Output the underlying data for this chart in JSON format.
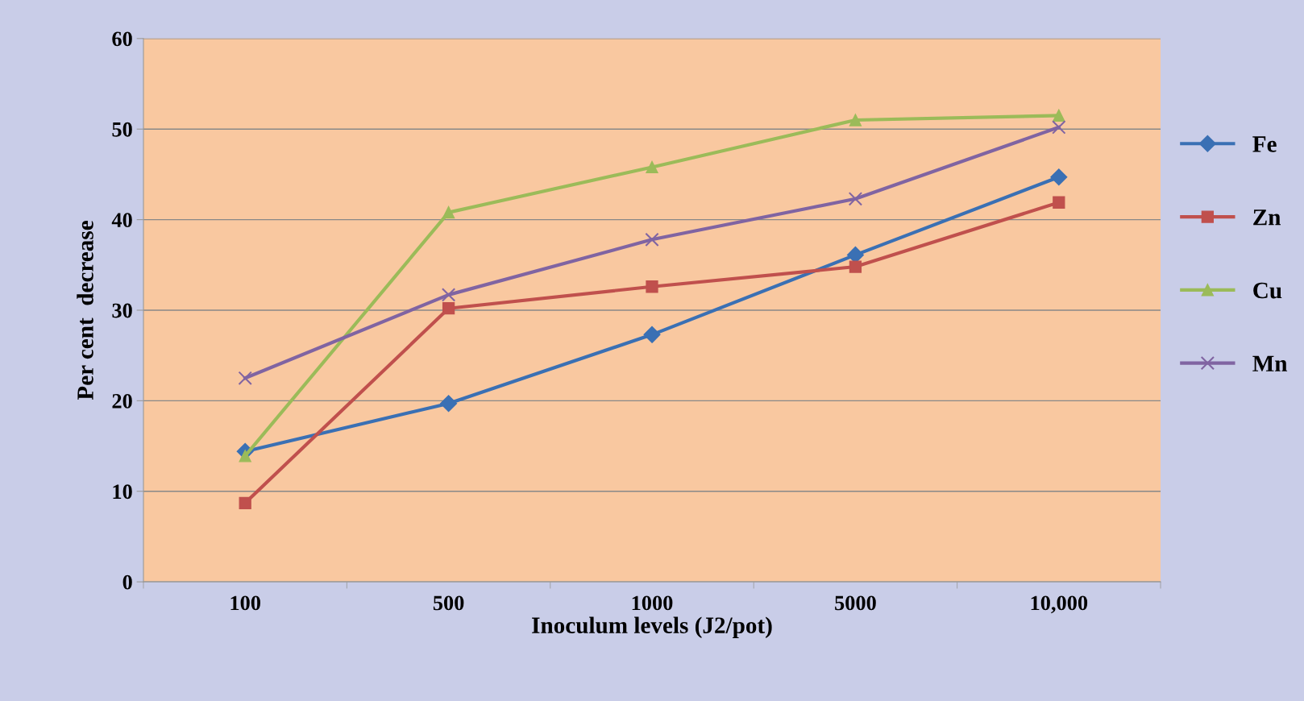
{
  "chart_data": {
    "type": "line",
    "xlabel": "Inoculum levels (J2/pot)",
    "ylabel": "Per cent  decrease",
    "categories": [
      "100",
      "500",
      "1000",
      "5000",
      "10,000"
    ],
    "ylim": [
      0,
      60
    ],
    "yticks": [
      0,
      10,
      20,
      30,
      40,
      50,
      60
    ],
    "grid": "y",
    "legend": "right",
    "series": [
      {
        "name": "Fe",
        "color": "#3a70b4",
        "marker": "diamond",
        "values": [
          14.4,
          19.7,
          27.3,
          36.1,
          44.7
        ]
      },
      {
        "name": "Zn",
        "color": "#c0504d",
        "marker": "square",
        "values": [
          8.7,
          30.2,
          32.6,
          34.8,
          41.9
        ]
      },
      {
        "name": "Cu",
        "color": "#9bbb59",
        "marker": "triangle",
        "values": [
          13.9,
          40.8,
          45.8,
          51.0,
          51.5
        ]
      },
      {
        "name": "Mn",
        "color": "#8064a2",
        "marker": "cross",
        "values": [
          22.5,
          31.7,
          37.8,
          42.3,
          50.2
        ]
      }
    ]
  }
}
